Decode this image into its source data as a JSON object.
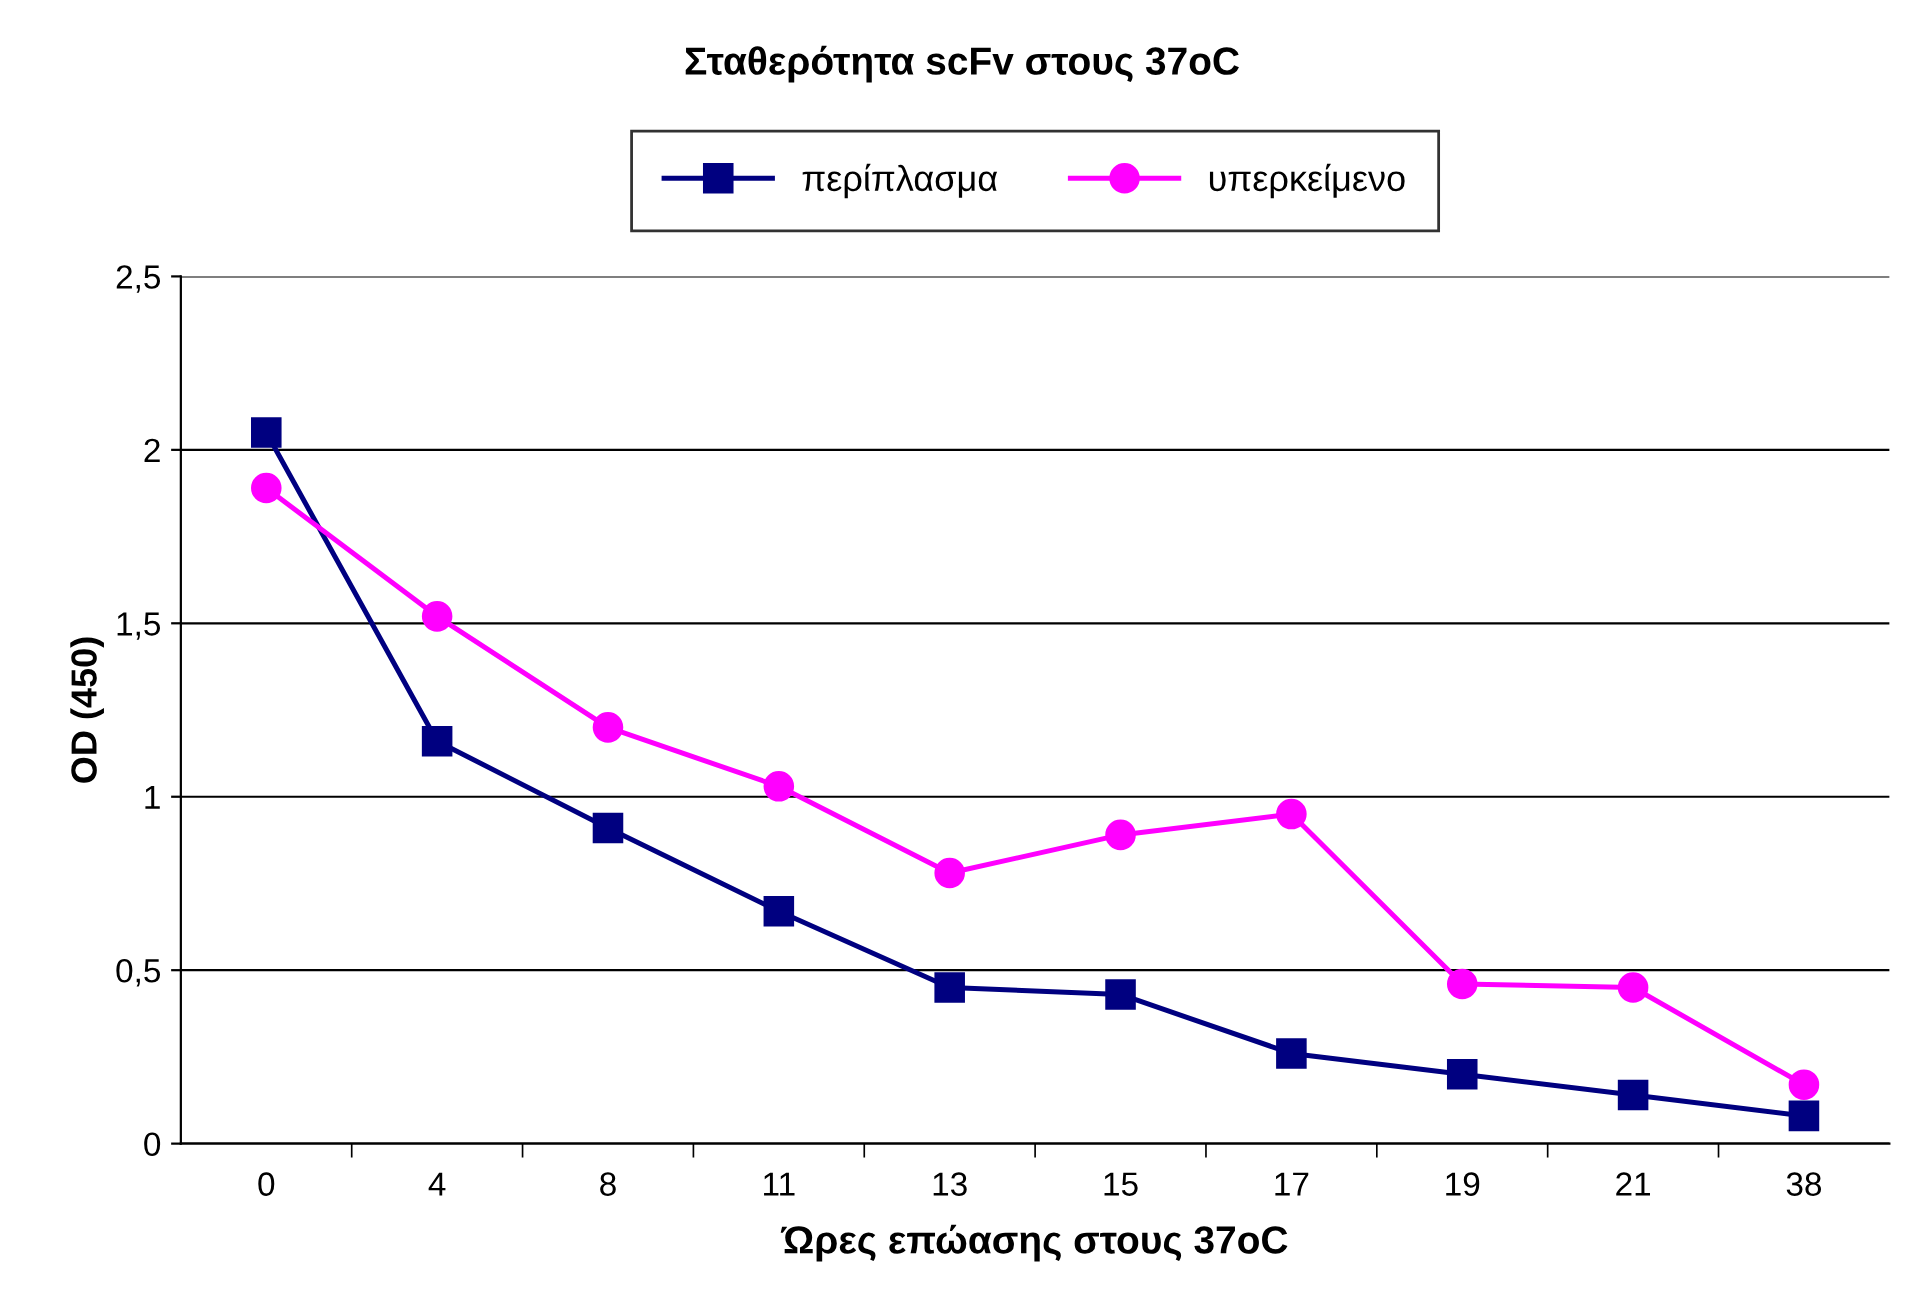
{
  "chart_data": {
    "type": "line",
    "title": "Σταθερότητα scFv στους 37oC",
    "xlabel": "Ώρες επώασης στους 37oC",
    "ylabel": "OD (450)",
    "categories": [
      "0",
      "4",
      "8",
      "11",
      "13",
      "15",
      "17",
      "19",
      "21",
      "38"
    ],
    "series": [
      {
        "name": "περίπλασμα",
        "color": "#000080",
        "marker": "square",
        "values": [
          2.05,
          1.16,
          0.91,
          0.67,
          0.45,
          0.43,
          0.26,
          0.2,
          0.14,
          0.08
        ]
      },
      {
        "name": "υπερκείμενο",
        "color": "#ff00ff",
        "marker": "circle",
        "values": [
          1.89,
          1.52,
          1.2,
          1.03,
          0.78,
          0.89,
          0.95,
          0.46,
          0.45,
          0.17
        ]
      }
    ],
    "ylim": [
      0,
      2.5
    ],
    "yticks": [
      0,
      {
        "value": 0.5,
        "label": "0,5"
      },
      1,
      {
        "value": 1.5,
        "label": "1,5"
      },
      2,
      {
        "value": 2.5,
        "label": "2,5"
      }
    ],
    "grid": "y",
    "legend": "top",
    "line_style": "solid"
  }
}
